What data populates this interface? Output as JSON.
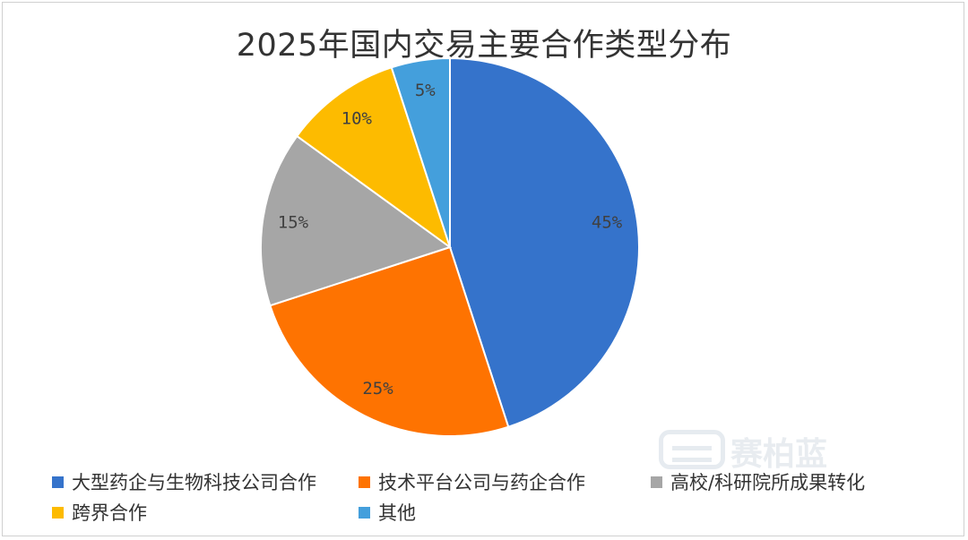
{
  "chart_data": {
    "type": "pie",
    "title": "2025年国内交易主要合作类型分布",
    "categories": [
      "大型药企与生物科技公司合作",
      "技术平台公司与药企合作",
      "高校/科研院所成果转化",
      "跨界合作",
      "其他"
    ],
    "values": [
      45,
      25,
      15,
      10,
      5
    ],
    "data_labels": [
      "45%",
      "25%",
      "15%",
      "10%",
      "5%"
    ],
    "colors": [
      "#3573cb",
      "#fe7301",
      "#a6a6a6",
      "#fdbb00",
      "#449fdc"
    ],
    "legend_position": "bottom",
    "start_angle": "12 o'clock",
    "direction": "clockwise"
  },
  "watermark": {
    "brand": "赛柏蓝"
  }
}
